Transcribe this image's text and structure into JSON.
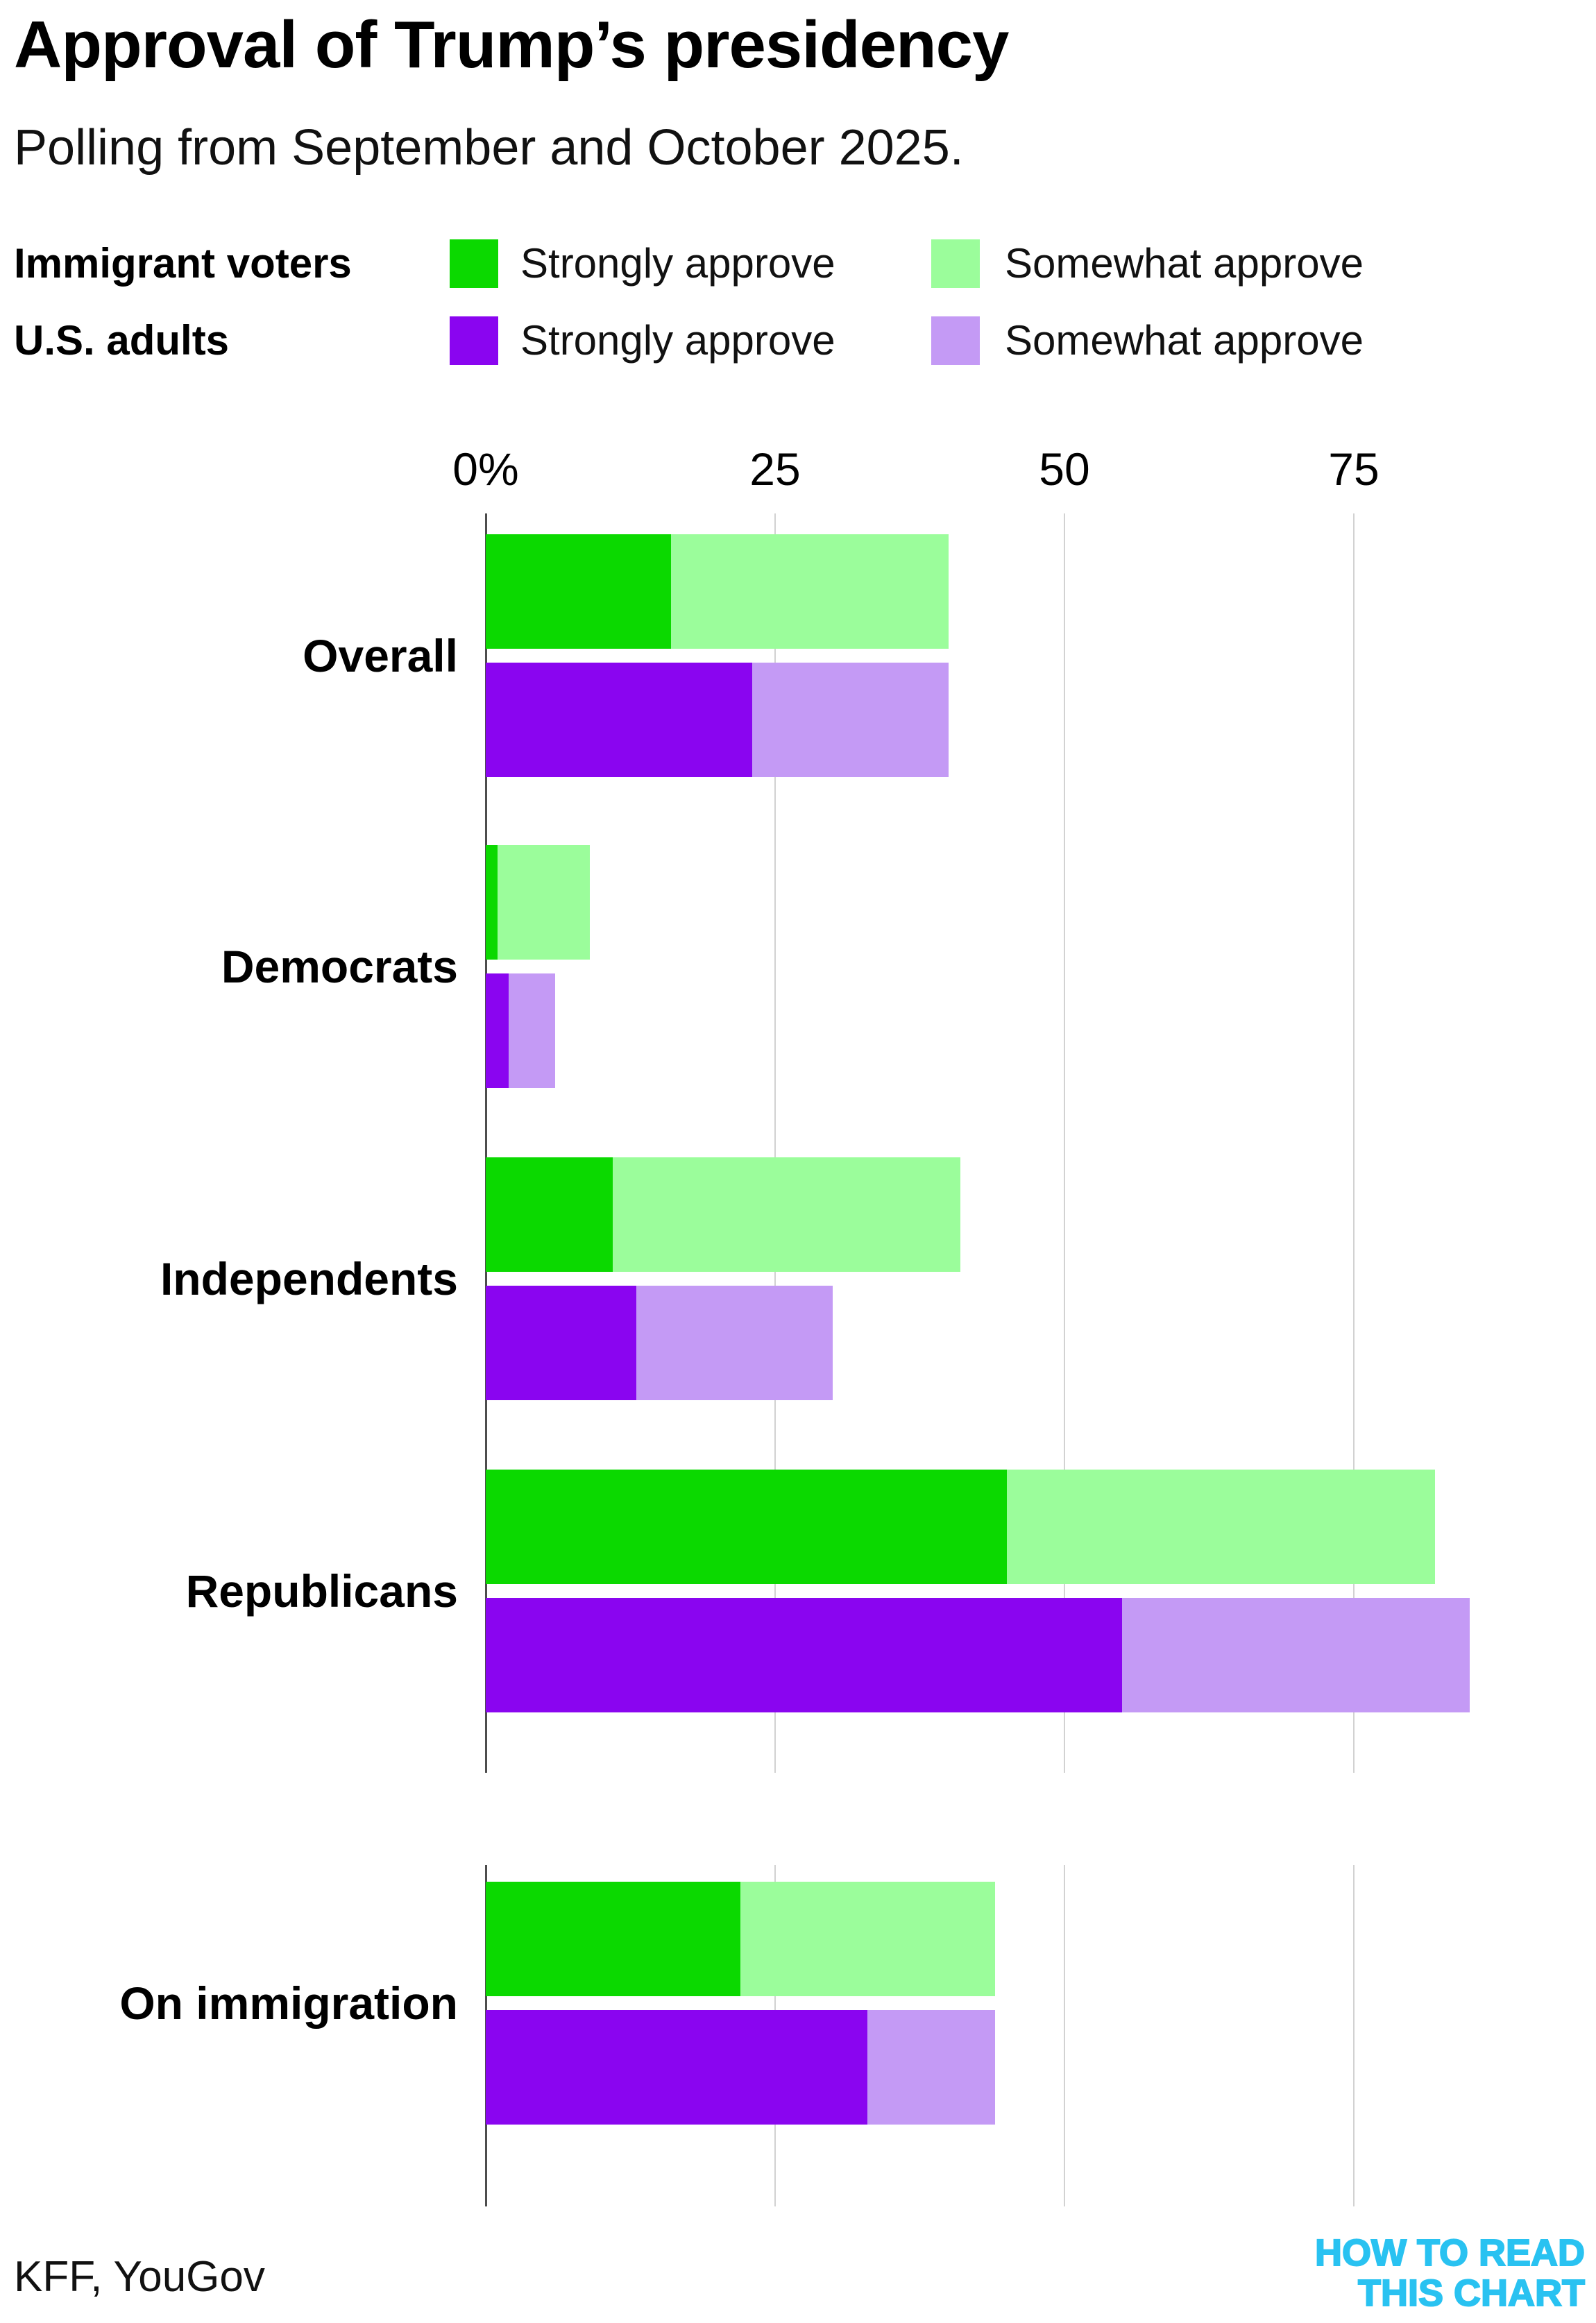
{
  "header": {
    "title": "Approval of Trump’s presidency",
    "subtitle": "Polling from September and October 2025."
  },
  "legend": {
    "groups": [
      {
        "label": "Immigrant voters",
        "items": [
          {
            "label": "Strongly approve",
            "color": "#0bd900"
          },
          {
            "label": "Somewhat approve",
            "color": "#9bfd9b"
          }
        ]
      },
      {
        "label": "U.S. adults",
        "items": [
          {
            "label": "Strongly approve",
            "color": "#8a05f0"
          },
          {
            "label": "Somewhat approve",
            "color": "#c49af5"
          }
        ]
      }
    ]
  },
  "chart_data": {
    "type": "bar",
    "orientation": "horizontal",
    "stacked": true,
    "unit": "percent",
    "title": "Approval of Trump’s presidency",
    "subtitle": "Polling from September and October 2025.",
    "axis": {
      "ticks": [
        "0%",
        "25",
        "50",
        "75"
      ],
      "tick_values": [
        0,
        25,
        50,
        75
      ],
      "xlim": [
        0,
        95
      ],
      "grid": true
    },
    "categories": [
      "Overall",
      "Democrats",
      "Independents",
      "Republicans",
      "On immigration"
    ],
    "series": [
      {
        "name": "Immigrant voters — Strongly approve",
        "color": "#0bd900",
        "values": [
          16,
          1,
          11,
          45,
          22
        ]
      },
      {
        "name": "Immigrant voters — Somewhat approve",
        "color": "#9bfd9b",
        "values": [
          24,
          8,
          30,
          37,
          22
        ]
      },
      {
        "name": "U.S. adults — Strongly approve",
        "color": "#8a05f0",
        "values": [
          23,
          2,
          13,
          55,
          33
        ]
      },
      {
        "name": "U.S. adults — Somewhat approve",
        "color": "#c49af5",
        "values": [
          17,
          4,
          17,
          30,
          11
        ]
      }
    ],
    "totals_note": {
      "immigrant_voters_total_approve": [
        40,
        9,
        41,
        82,
        44
      ],
      "us_adults_total_approve": [
        40,
        6,
        30,
        85,
        44
      ]
    }
  },
  "footer": {
    "source": "KFF, YouGov",
    "logo_line1": "HOW TO READ",
    "logo_line2": "THIS CHART",
    "logo_color": "#29c2f1"
  }
}
